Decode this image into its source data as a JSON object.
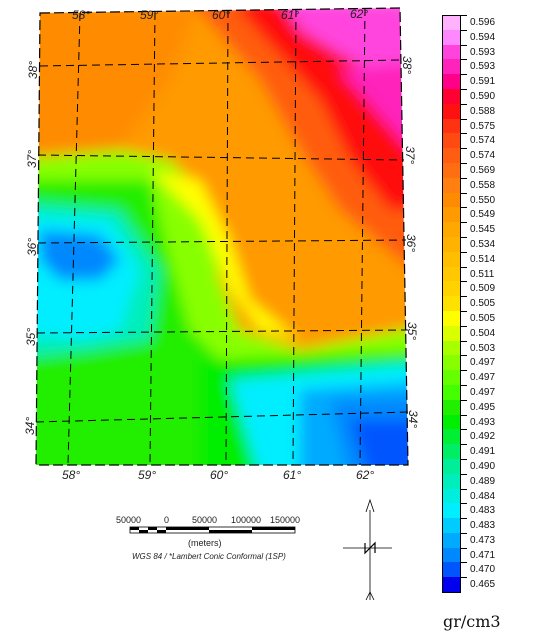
{
  "map": {
    "x_labels_top": [
      "58°",
      "59°",
      "60°",
      "61°",
      "62°"
    ],
    "x_labels_bottom": [
      "58°",
      "59°",
      "60°",
      "61°",
      "62°"
    ],
    "y_labels_left": [
      "38°",
      "37°",
      "36°",
      "35°",
      "34°"
    ],
    "y_labels_right": [
      "38°",
      "37°",
      "36°",
      "35°",
      "34°"
    ]
  },
  "scale_bar": {
    "labels": [
      "50000",
      "0",
      "50000",
      "100000",
      "150000"
    ],
    "units": "(meters)",
    "projection": "WGS 84 / *Lambert Conic Conformal (1SP)"
  },
  "legend": {
    "unit": "gr/cm3",
    "values": [
      "0.596",
      "0.594",
      "0.593",
      "0.593",
      "0.591",
      "0.590",
      "0.588",
      "0.575",
      "0.574",
      "0.574",
      "0.569",
      "0.558",
      "0.550",
      "0.549",
      "0.545",
      "0.534",
      "0.514",
      "0.511",
      "0.509",
      "0.505",
      "0.505",
      "0.504",
      "0.503",
      "0.497",
      "0.497",
      "0.497",
      "0.495",
      "0.493",
      "0.492",
      "0.491",
      "0.490",
      "0.489",
      "0.484",
      "0.483",
      "0.483",
      "0.473",
      "0.471",
      "0.470",
      "0.465"
    ],
    "colors": [
      "#ffb3ff",
      "#ff88ff",
      "#ff44dd",
      "#ff22bb",
      "#ff0088",
      "#ff0033",
      "#ff1111",
      "#ff3311",
      "#ff4a11",
      "#ff5d11",
      "#ff6e11",
      "#ff7f11",
      "#ff8c00",
      "#ff9a00",
      "#ffa800",
      "#ffb300",
      "#ffbe00",
      "#ffc800",
      "#ffd200",
      "#ffe100",
      "#ffff00",
      "#d9ff00",
      "#a8ff00",
      "#88ff00",
      "#66ff00",
      "#44ff00",
      "#22ee00",
      "#00ee00",
      "#00ee33",
      "#00ee66",
      "#00ee99",
      "#00eebb",
      "#00eedd",
      "#00eeff",
      "#00ccff",
      "#00aaff",
      "#0088ff",
      "#0055ff",
      "#0000ee"
    ]
  }
}
